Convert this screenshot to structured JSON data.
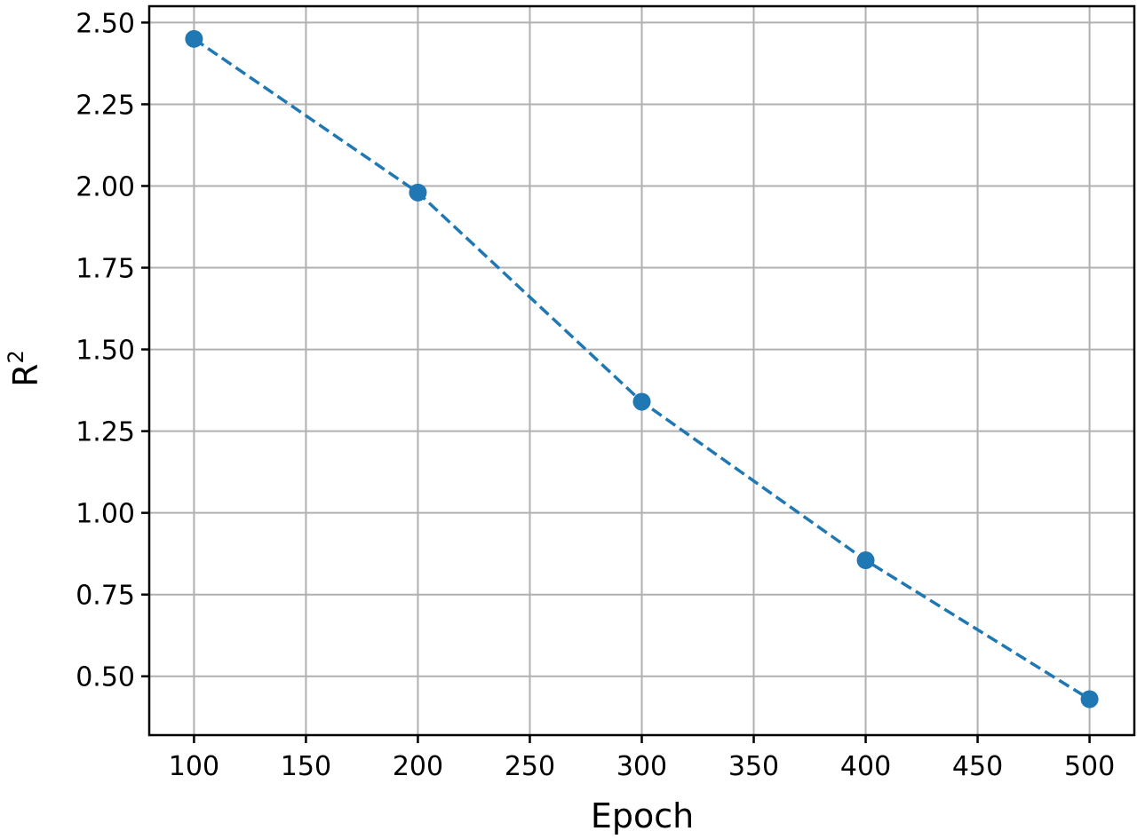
{
  "chart_data": {
    "type": "line",
    "title": "",
    "xlabel": "Epoch",
    "ylabel": {
      "base": "R",
      "superscript": "2"
    },
    "xlim": [
      80,
      520
    ],
    "ylim": [
      0.32,
      2.55
    ],
    "xticks": [
      100,
      150,
      200,
      250,
      300,
      350,
      400,
      450,
      500
    ],
    "xtick_labels": [
      "100",
      "150",
      "200",
      "250",
      "300",
      "350",
      "400",
      "450",
      "500"
    ],
    "yticks": [
      0.5,
      0.75,
      1.0,
      1.25,
      1.5,
      1.75,
      2.0,
      2.25,
      2.5
    ],
    "ytick_labels": [
      "0.50",
      "0.75",
      "1.00",
      "1.25",
      "1.50",
      "1.75",
      "2.00",
      "2.25",
      "2.50"
    ],
    "grid": true,
    "legend": "none",
    "series": [
      {
        "x": [
          100,
          200,
          300,
          400,
          500
        ],
        "y": [
          2.45,
          1.98,
          1.34,
          0.855,
          0.43
        ],
        "color": "#1f77b4",
        "line_style": "dashed",
        "marker": "circle"
      }
    ]
  }
}
